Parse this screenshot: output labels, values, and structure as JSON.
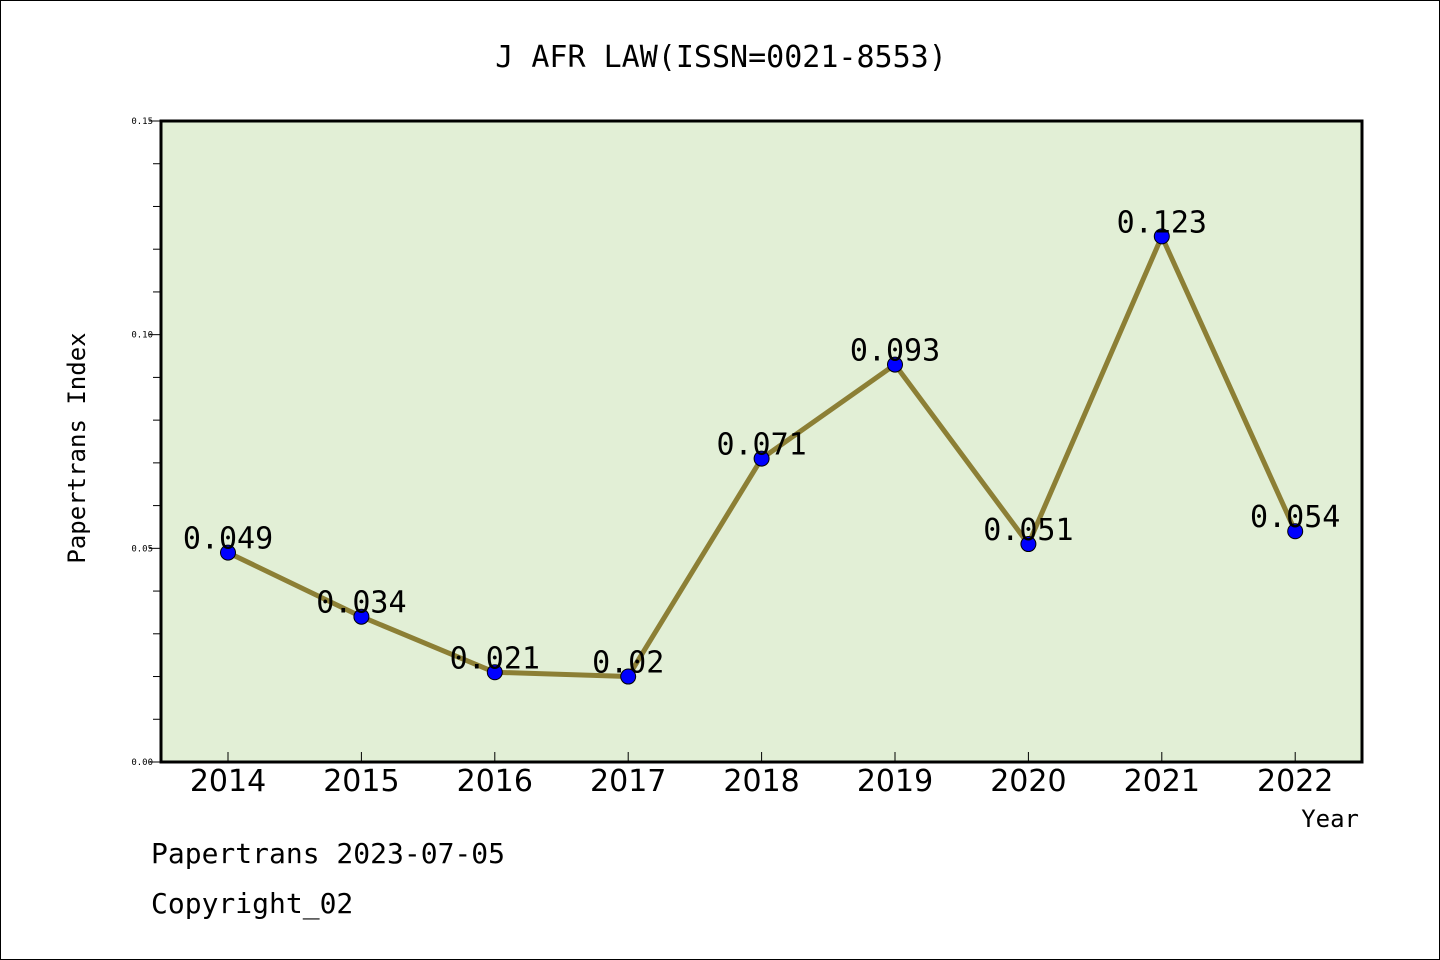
{
  "chart_data": {
    "type": "line",
    "title": "J AFR LAW(ISSN=0021-8553)",
    "xlabel": "Year",
    "ylabel": "Papertrans Index",
    "categories": [
      "2014",
      "2015",
      "2016",
      "2017",
      "2018",
      "2019",
      "2020",
      "2021",
      "2022"
    ],
    "values": [
      0.049,
      0.034,
      0.021,
      0.02,
      0.071,
      0.093,
      0.051,
      0.123,
      0.054
    ],
    "data_labels": [
      "0.049",
      "0.034",
      "0.021",
      "0.02",
      "0.071",
      "0.093",
      "0.051",
      "0.123",
      "0.054"
    ],
    "ylim": [
      0,
      0.15
    ],
    "yticks": [
      "0.00",
      "0.05",
      "0.10",
      "0.15"
    ],
    "grid": false,
    "line_color": "#8c7f35",
    "marker_color": "#0000ff",
    "plot_background": "#e2efd6"
  },
  "footer": {
    "line1": "Papertrans 2023-07-05",
    "line2": "Copyright_02"
  }
}
